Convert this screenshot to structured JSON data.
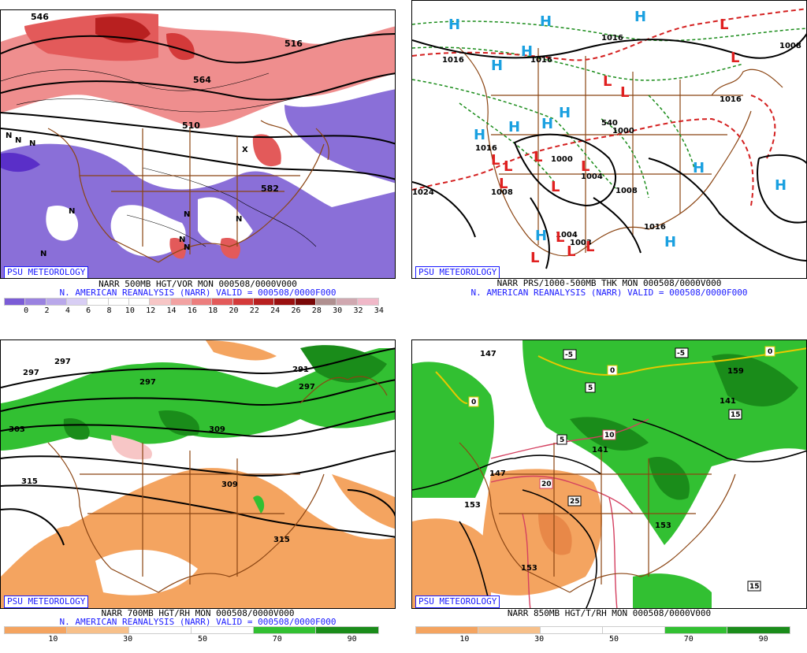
{
  "panels": [
    {
      "id": "vort500",
      "badge": "PSU METEOROLOGY",
      "title_line1": "NARR 500MB HGT/VOR MON 000508/0000V000",
      "title_line2": "N. AMERICAN REANALYSIS (NARR) VALID = 000508/0000F000",
      "scale_labels": [
        "0",
        "2",
        "4",
        "6",
        "8",
        "10",
        "12",
        "14",
        "16",
        "18",
        "20",
        "22",
        "24",
        "26",
        "28",
        "30",
        "32",
        "34"
      ],
      "scale_colors": [
        "#7b5cd6",
        "#9a82e0",
        "#b9a8ea",
        "#d8cef4",
        "#ffffff",
        "#ffffff",
        "#ffffff",
        "#f7c6c6",
        "#f2a2a2",
        "#ec7e7e",
        "#e35a5a",
        "#d43a3a",
        "#b82020",
        "#9a1010",
        "#7a0808",
        "#b09090",
        "#d0a8b0",
        "#f0b8c8"
      ],
      "contour_labels": [
        "546",
        "516",
        "564",
        "510",
        "582"
      ],
      "symbols": [
        "N",
        "N",
        "N",
        "N",
        "N",
        "N",
        "N",
        "X",
        "N",
        "N"
      ]
    },
    {
      "id": "prs",
      "badge": "PSU METEOROLOGY",
      "title_line1": "NARR PRS/1000-500MB THK MON 000508/0000V000",
      "title_line2": "N. AMERICAN REANALYSIS (NARR) VALID = 000508/0000F000",
      "highs": [
        "H",
        "H",
        "H",
        "H",
        "H",
        "H",
        "H",
        "H",
        "H",
        "H",
        "H",
        "H",
        "H"
      ],
      "lows": [
        "L",
        "L",
        "L",
        "L",
        "L",
        "L",
        "L",
        "L",
        "L",
        "L",
        "L",
        "L",
        "L",
        "L"
      ],
      "isobar_labels": [
        "1016",
        "1016",
        "1016",
        "1016",
        "1000",
        "1004",
        "1008",
        "1008",
        "1016",
        "1004",
        "1003",
        "1000",
        "1008",
        "1016",
        "1024",
        "540"
      ]
    },
    {
      "id": "rh700",
      "badge": "PSU METEOROLOGY",
      "title_line1": "NARR 700MB HGT/RH MON 000508/0000V000",
      "title_line2": "N. AMERICAN REANALYSIS (NARR) VALID = 000508/0000F000",
      "scale_labels": [
        "10",
        "30",
        "50",
        "70",
        "90"
      ],
      "scale_colors": [
        "#f4a460",
        "#f7c08a",
        "#ffffff",
        "#ffffff",
        "#32c032",
        "#1a8c1a"
      ],
      "contour_labels": [
        "297",
        "297",
        "297",
        "291",
        "297",
        "303",
        "309",
        "309",
        "315",
        "315"
      ]
    },
    {
      "id": "t850",
      "badge": "PSU METEOROLOGY",
      "title_line1": "NARR 850MB HGT/T/RH MON 000508/0000V000",
      "title_line2": "",
      "scale_labels": [
        "10",
        "30",
        "50",
        "70",
        "90"
      ],
      "scale_colors": [
        "#f4a460",
        "#f7c08a",
        "#ffffff",
        "#ffffff",
        "#32c032",
        "#1a8c1a"
      ],
      "contour_labels": [
        "147",
        "147",
        "153",
        "153",
        "153",
        "141",
        "141",
        "159"
      ],
      "boxed_labels": [
        "-5",
        "-5",
        "0",
        "0",
        "0",
        "5",
        "5",
        "10",
        "15",
        "15",
        "20",
        "25"
      ]
    }
  ]
}
